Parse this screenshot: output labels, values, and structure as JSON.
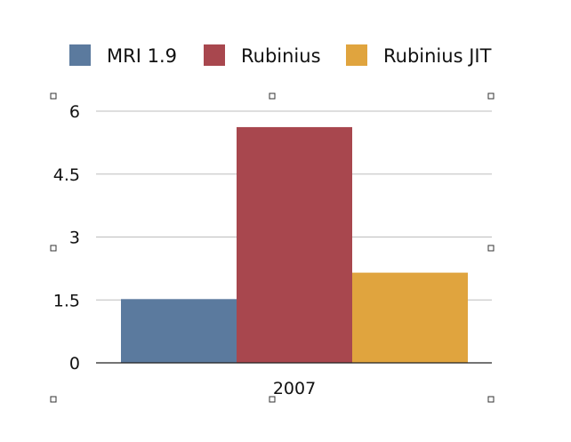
{
  "chart_data": {
    "type": "bar",
    "categories": [
      "2007"
    ],
    "series": [
      {
        "name": "MRI 1.9",
        "values": [
          1.52
        ],
        "color": "#5b7a9e"
      },
      {
        "name": "Rubinius",
        "values": [
          5.62
        ],
        "color": "#a8474e"
      },
      {
        "name": "Rubinius JIT",
        "values": [
          2.15
        ],
        "color": "#e0a43e"
      }
    ],
    "ylim": [
      0,
      6
    ],
    "yticks": [
      "0",
      "1.5",
      "3",
      "4.5",
      "6"
    ],
    "grid": true,
    "legend": "top",
    "title": "",
    "xlabel": "",
    "ylabel": ""
  }
}
